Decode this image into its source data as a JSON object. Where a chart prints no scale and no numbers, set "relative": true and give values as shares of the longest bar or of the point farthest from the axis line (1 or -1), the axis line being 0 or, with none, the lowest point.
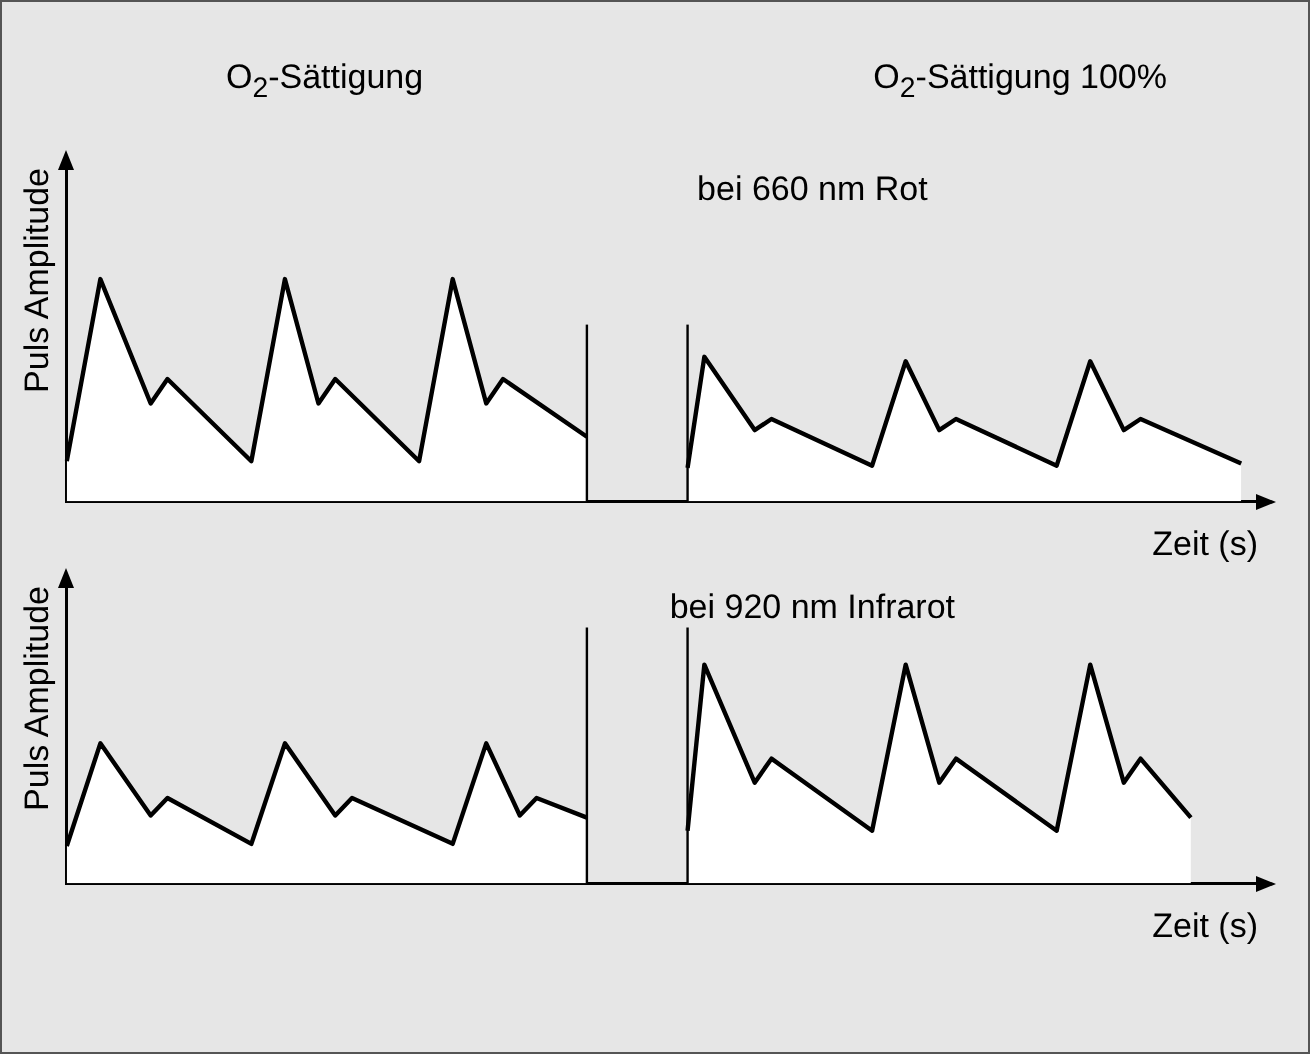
{
  "chart_data": [
    {
      "type": "area",
      "relative": true,
      "tick_labels": false,
      "ylabel": "Puls Amplitude",
      "xlabel": "Zeit (s)",
      "subtitle": "bei 660 nm Rot",
      "annotations": [
        "O$_{2}$-Sättigung",
        "O$_{2}$-Sättigung 100%"
      ],
      "categories": [
        null,
        null,
        null,
        null,
        null,
        null,
        null,
        null,
        null,
        null,
        null,
        null,
        null,
        null,
        null,
        null,
        null,
        null,
        null,
        null,
        null,
        null,
        null,
        null,
        null,
        null,
        null,
        null,
        null,
        null,
        null,
        null,
        null,
        null,
        null,
        null,
        null,
        null,
        null,
        null,
        null,
        null,
        null,
        null,
        null,
        null,
        null,
        null,
        null,
        null,
        null,
        null,
        null,
        null,
        null,
        null,
        null,
        null,
        null,
        null,
        null,
        null,
        null,
        null,
        null,
        null,
        null,
        null,
        null,
        null,
        null,
        null
      ],
      "series": [
        {
          "color": "#000000",
          "values": [
            0.18,
            null,
            1,
            null,
            null,
            0.44,
            0.55,
            null,
            null,
            null,
            null,
            0.18,
            null,
            1,
            null,
            0.44,
            0.55,
            null,
            null,
            null,
            null,
            0.18,
            null,
            1,
            null,
            0.44,
            0.55,
            null,
            null,
            null,
            null,
            0.29,
            null,
            null,
            null,
            null,
            null,
            null,
            null,
            null,
            null,
            null,
            null,
            null,
            null,
            null,
            null,
            null,
            null,
            null,
            null,
            null,
            null,
            null,
            null,
            null,
            null,
            null,
            null,
            null,
            null,
            null,
            null,
            null,
            null,
            null,
            null,
            null,
            null,
            null,
            null,
            null
          ]
        },
        {
          "color": "#000000",
          "values": [
            null,
            null,
            null,
            null,
            null,
            null,
            null,
            null,
            null,
            null,
            null,
            null,
            null,
            null,
            null,
            null,
            null,
            null,
            null,
            null,
            null,
            null,
            null,
            null,
            null,
            null,
            null,
            null,
            null,
            null,
            null,
            null,
            null,
            null,
            null,
            null,
            null,
            0.15,
            0.65,
            null,
            null,
            0.32,
            0.37,
            null,
            null,
            null,
            null,
            null,
            0.16,
            null,
            0.63,
            null,
            0.32,
            0.37,
            null,
            null,
            null,
            null,
            null,
            0.16,
            null,
            0.63,
            null,
            0.32,
            0.37,
            null,
            null,
            null,
            null,
            null,
            0.17,
            null
          ]
        }
      ]
    },
    {
      "type": "area",
      "relative": true,
      "tick_labels": false,
      "ylabel": "Puls Amplitude",
      "xlabel": "Zeit (s)",
      "subtitle": "bei 920 nm Infrarot",
      "categories": [
        null,
        null,
        null,
        null,
        null,
        null,
        null,
        null,
        null,
        null,
        null,
        null,
        null,
        null,
        null,
        null,
        null,
        null,
        null,
        null,
        null,
        null,
        null,
        null,
        null,
        null,
        null,
        null,
        null,
        null,
        null,
        null,
        null,
        null,
        null,
        null,
        null,
        null,
        null,
        null,
        null,
        null,
        null,
        null,
        null,
        null,
        null,
        null,
        null,
        null,
        null,
        null,
        null,
        null,
        null,
        null,
        null,
        null,
        null,
        null,
        null,
        null,
        null,
        null,
        null,
        null,
        null,
        null,
        null,
        null,
        null,
        null
      ],
      "series": [
        {
          "color": "#000000",
          "values": [
            0.17,
            null,
            0.64,
            null,
            null,
            0.31,
            0.39,
            null,
            null,
            null,
            null,
            0.18,
            null,
            0.64,
            null,
            null,
            0.31,
            0.39,
            null,
            null,
            null,
            null,
            null,
            0.18,
            null,
            0.64,
            null,
            0.31,
            0.39,
            null,
            null,
            0.3,
            null,
            null,
            null,
            null,
            null,
            null,
            null,
            null,
            null,
            null,
            null,
            null,
            null,
            null,
            null,
            null,
            null,
            null,
            null,
            null,
            null,
            null,
            null,
            null,
            null,
            null,
            null,
            null,
            null,
            null,
            null,
            null,
            null,
            null,
            null,
            null,
            null,
            null,
            null,
            null
          ]
        },
        {
          "color": "#000000",
          "values": [
            null,
            null,
            null,
            null,
            null,
            null,
            null,
            null,
            null,
            null,
            null,
            null,
            null,
            null,
            null,
            null,
            null,
            null,
            null,
            null,
            null,
            null,
            null,
            null,
            null,
            null,
            null,
            null,
            null,
            null,
            null,
            null,
            null,
            null,
            null,
            null,
            null,
            0.24,
            1,
            null,
            null,
            0.46,
            0.57,
            null,
            null,
            null,
            null,
            null,
            0.24,
            null,
            1,
            null,
            0.46,
            0.57,
            null,
            null,
            null,
            null,
            null,
            0.24,
            null,
            1,
            null,
            0.46,
            0.57,
            null,
            null,
            0.3,
            null,
            null,
            null,
            null
          ]
        }
      ]
    }
  ]
}
